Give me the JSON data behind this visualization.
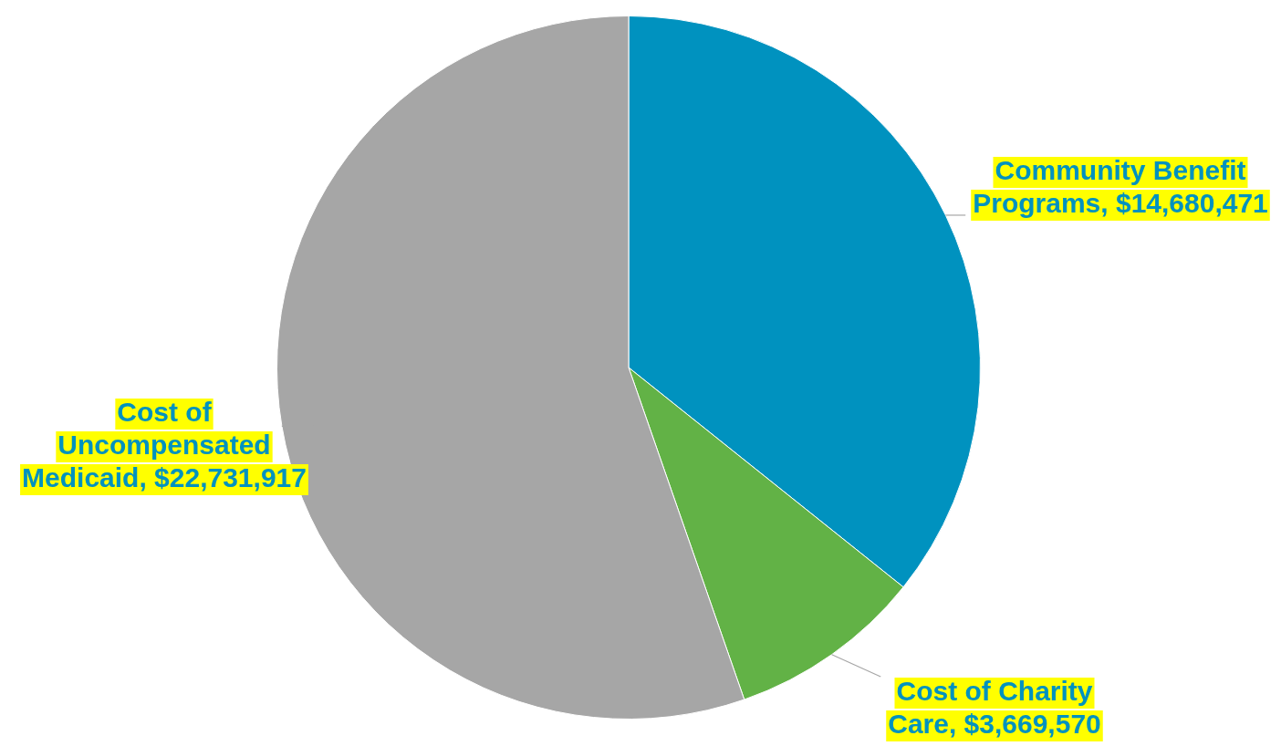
{
  "chart_data": {
    "type": "pie",
    "categories": [
      "Community Benefit Programs",
      "Cost of Charity Care",
      "Cost of Uncompensated Medicaid"
    ],
    "values": [
      14680471,
      3669570,
      22731917
    ],
    "value_labels": [
      "$14,680,471",
      "$3,669,570",
      "$22,731,917"
    ],
    "colors": [
      "#0092bf",
      "#62b246",
      "#a6a6a6"
    ],
    "legend": false
  }
}
